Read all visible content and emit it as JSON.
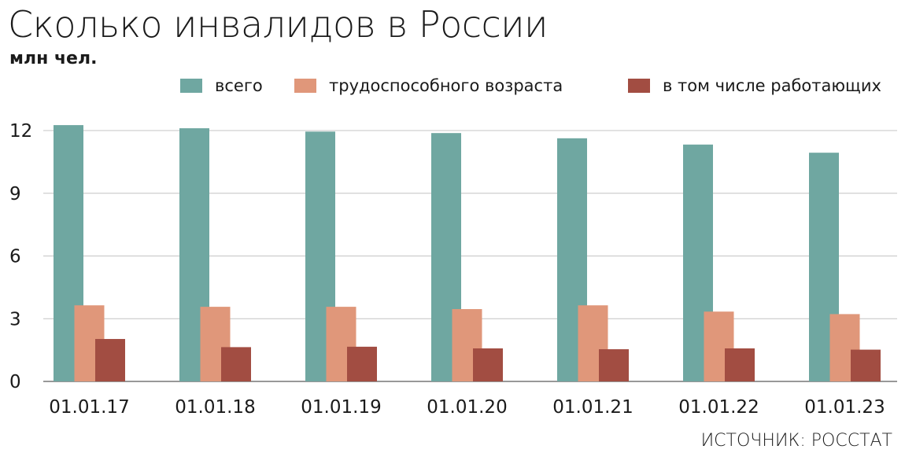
{
  "chart_data": {
    "type": "bar",
    "title": "Сколько инвалидов в России",
    "subtitle": "млн чел.",
    "categories": [
      "01.01.17",
      "01.01.18",
      "01.01.19",
      "01.01.20",
      "01.01.21",
      "01.01.22",
      "01.01.23"
    ],
    "series": [
      {
        "name": "всего",
        "color": "#6fa7a1",
        "values": [
          12.26,
          12.11,
          11.95,
          11.88,
          11.63,
          11.33,
          10.94
        ]
      },
      {
        "name": "трудоспособного возраста",
        "color": "#e0977a",
        "values": [
          3.64,
          3.57,
          3.57,
          3.46,
          3.64,
          3.34,
          3.22
        ]
      },
      {
        "name": "в том числе работающих",
        "color": "#a24d42",
        "values": [
          2.03,
          1.64,
          1.66,
          1.58,
          1.54,
          1.58,
          1.52
        ]
      }
    ],
    "yticks": [
      0,
      3,
      6,
      9,
      12
    ],
    "ylim": [
      0,
      12
    ],
    "xlabel": "",
    "ylabel": "",
    "grid": true,
    "legend_position": "top"
  },
  "source": "ИСТОЧНИК: РОССТАТ"
}
